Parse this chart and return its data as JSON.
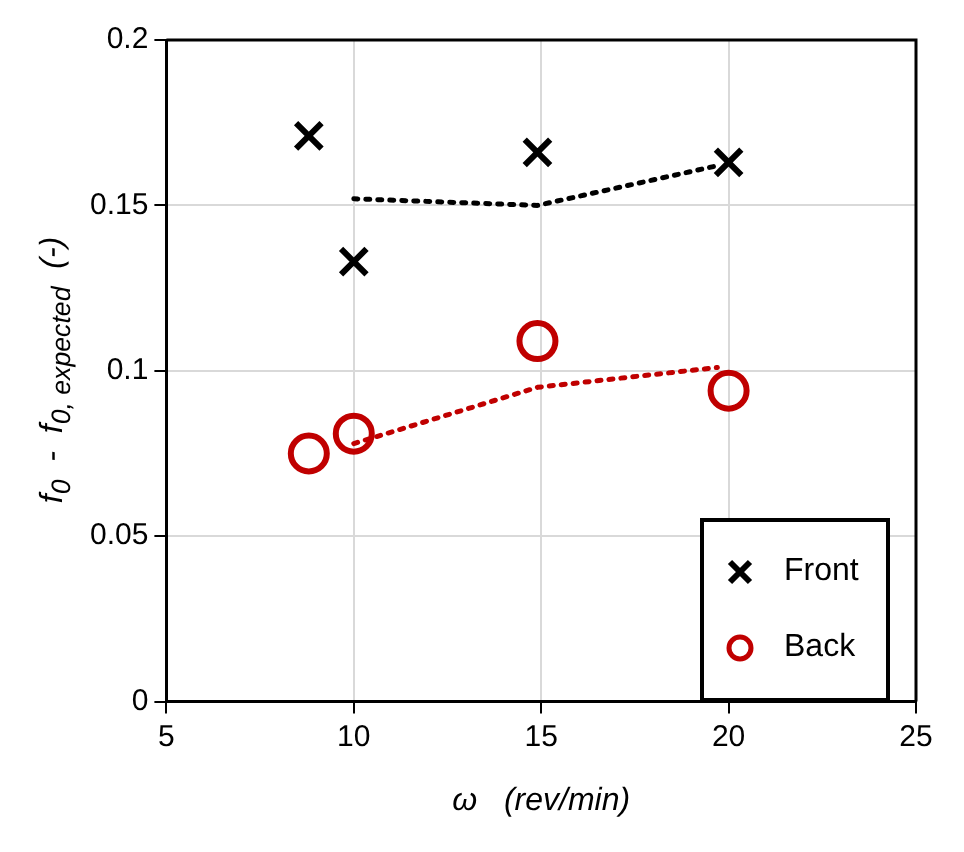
{
  "chart_data": {
    "type": "scatter",
    "xlabel": "ω   (rev/min)",
    "ylabel": "f$_{0}$  -  f$_{0, expected}$  (-)",
    "xlim": [
      5,
      25
    ],
    "xticks": [
      5,
      10,
      15,
      20,
      25
    ],
    "ylim": [
      0,
      0.2
    ],
    "yticks": [
      0,
      0.05,
      0.1,
      0.15,
      0.2
    ],
    "grid": true,
    "legend": "bottom right",
    "series": [
      {
        "name": "Front",
        "type": "scatter",
        "marker": "cross",
        "color": "#000000",
        "x": [
          8.8,
          10,
          14.9,
          20
        ],
        "values": [
          0.171,
          0.133,
          0.166,
          0.163
        ]
      },
      {
        "name": "Back",
        "type": "scatter",
        "marker": "circle",
        "color": "#c00000",
        "x": [
          8.8,
          10,
          14.9,
          20
        ],
        "values": [
          0.075,
          0.081,
          0.109,
          0.094
        ]
      },
      {
        "type": "line",
        "marker": "none",
        "line_style": "dotted",
        "color": "#000000",
        "x": [
          10,
          14.9,
          19.7
        ],
        "values": [
          0.152,
          0.15,
          0.162
        ]
      },
      {
        "type": "line",
        "marker": "none",
        "line_style": "dotted",
        "color": "#c00000",
        "x": [
          10,
          14.9,
          19.7
        ],
        "values": [
          0.078,
          0.095,
          0.101
        ]
      }
    ]
  }
}
